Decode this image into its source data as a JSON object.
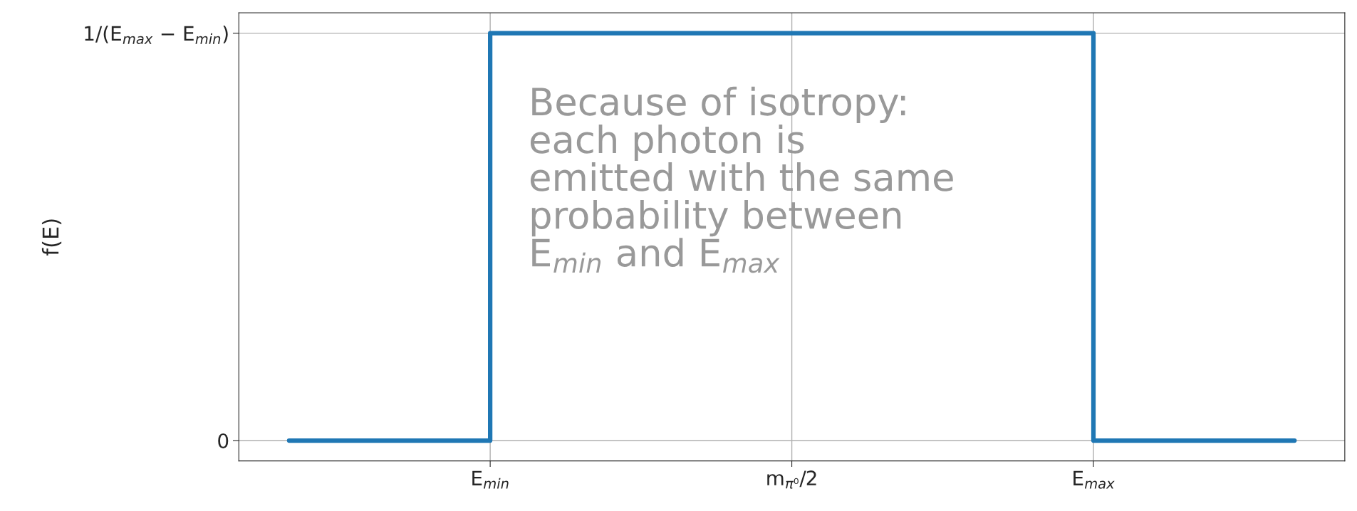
{
  "chart_data": {
    "type": "step",
    "ylabel": "f(E)",
    "categories": [
      null,
      null,
      "E$_{min}$",
      null,
      null,
      "m$_{π⁰}$/2",
      null,
      null,
      "E$_{max}$",
      null,
      null
    ],
    "series": [
      {
        "color": "#1f77b4",
        "values": [
          0,
          0,
          1,
          1,
          1,
          1,
          1,
          1,
          0,
          0,
          0
        ]
      }
    ],
    "ylim": [
      -0.05,
      1.05
    ],
    "yticks": [
      0,
      {
        "value": 1,
        "label": "1/(E$_{max}$ − E$_{min}$)"
      }
    ],
    "grid": true,
    "annotations": [
      "Because of isotropy:\neach photon is\nemitted with the same\nprobability between\nE$_{min}$ and E$_{max}$"
    ]
  }
}
